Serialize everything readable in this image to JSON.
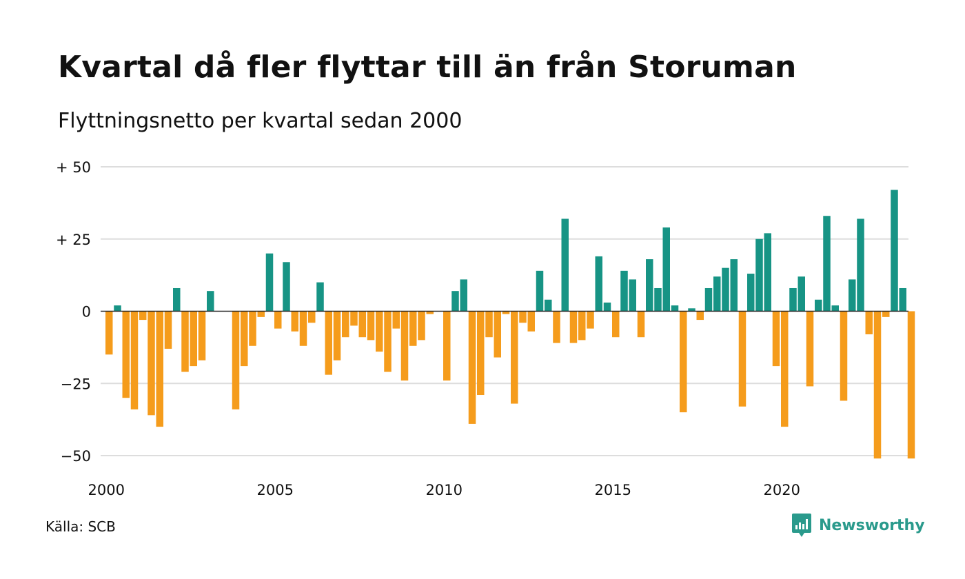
{
  "title": "Kvartal då fler flyttar till än från Storuman",
  "subtitle": "Flyttningsnetto per kvartal sedan 2000",
  "source": "Källa: SCB",
  "brand": {
    "name": "Newsworthy",
    "logo_icon": "newsworthy-chart-bubble-icon"
  },
  "colors": {
    "positive": "#179485",
    "negative": "#f59c1c",
    "grid": "#dddddd",
    "zero_line": "#222222",
    "brand": "#2a9a8c",
    "text": "#111111"
  },
  "chart_data": {
    "type": "bar",
    "title": "Kvartal då fler flyttar till än från Storuman",
    "subtitle": "Flyttningsnetto per kvartal sedan 2000",
    "ylim": [
      -50,
      50
    ],
    "y_ticks": [
      50,
      25,
      0,
      -25,
      -50
    ],
    "y_tick_labels": [
      "+ 50",
      "+ 25",
      "0",
      "−25",
      "−50"
    ],
    "x_ticks": [
      2000,
      2005,
      2010,
      2015,
      2020
    ],
    "x_tick_labels": [
      "2000",
      "2005",
      "2010",
      "2015",
      "2020"
    ],
    "grid": true,
    "legend": "none",
    "start_year": 2000,
    "quarters_per_year": 4,
    "categories": [
      "2000 Q1",
      "2000 Q2",
      "2000 Q3",
      "2000 Q4",
      "2001 Q1",
      "2001 Q2",
      "2001 Q3",
      "2001 Q4",
      "2002 Q1",
      "2002 Q2",
      "2002 Q3",
      "2002 Q4",
      "2003 Q1",
      "2003 Q2",
      "2003 Q3",
      "2003 Q4",
      "2004 Q1",
      "2004 Q2",
      "2004 Q3",
      "2004 Q4",
      "2005 Q1",
      "2005 Q2",
      "2005 Q3",
      "2005 Q4",
      "2006 Q1",
      "2006 Q2",
      "2006 Q3",
      "2006 Q4",
      "2007 Q1",
      "2007 Q2",
      "2007 Q3",
      "2007 Q4",
      "2008 Q1",
      "2008 Q2",
      "2008 Q3",
      "2008 Q4",
      "2009 Q1",
      "2009 Q2",
      "2009 Q3",
      "2009 Q4",
      "2010 Q1",
      "2010 Q2",
      "2010 Q3",
      "2010 Q4",
      "2011 Q1",
      "2011 Q2",
      "2011 Q3",
      "2011 Q4",
      "2012 Q1",
      "2012 Q2",
      "2012 Q3",
      "2012 Q4",
      "2013 Q1",
      "2013 Q2",
      "2013 Q3",
      "2013 Q4",
      "2014 Q1",
      "2014 Q2",
      "2014 Q3",
      "2014 Q4",
      "2015 Q1",
      "2015 Q2",
      "2015 Q3",
      "2015 Q4",
      "2016 Q1",
      "2016 Q2",
      "2016 Q3",
      "2016 Q4",
      "2017 Q1",
      "2017 Q2",
      "2017 Q3",
      "2017 Q4",
      "2018 Q1",
      "2018 Q2",
      "2018 Q3",
      "2018 Q4",
      "2019 Q1",
      "2019 Q2",
      "2019 Q3",
      "2019 Q4",
      "2020 Q1",
      "2020 Q2",
      "2020 Q3",
      "2020 Q4",
      "2021 Q1",
      "2021 Q2",
      "2021 Q3",
      "2021 Q4",
      "2022 Q1",
      "2022 Q2",
      "2022 Q3",
      "2022 Q4",
      "2023 Q1",
      "2023 Q2",
      "2023 Q3",
      "2023 Q4",
      "2024 Q1",
      "2024 Q2",
      "2024 Q3"
    ],
    "values": [
      -15,
      2,
      -30,
      -34,
      -3,
      -36,
      -40,
      -13,
      8,
      -21,
      -19,
      -17,
      7,
      0,
      0,
      -34,
      -19,
      -12,
      -2,
      20,
      -6,
      17,
      -7,
      -12,
      -4,
      10,
      -22,
      -17,
      -9,
      -5,
      -9,
      -10,
      -14,
      -21,
      -6,
      -24,
      -12,
      -10,
      -1,
      0,
      -24,
      7,
      11,
      -39,
      -29,
      -9,
      -16,
      -1,
      -32,
      -4,
      -7,
      14,
      4,
      -11,
      32,
      -11,
      -10,
      -6,
      19,
      3,
      -9,
      14,
      11,
      -9,
      18,
      8,
      29,
      2,
      -35,
      1,
      -3,
      8,
      12,
      15,
      18,
      -33,
      13,
      25,
      27,
      -19,
      -40,
      8,
      12,
      -26,
      4,
      33,
      2,
      -31,
      11,
      32,
      -8,
      -51,
      -2,
      42,
      8,
      -51,
      0,
      0,
      0
    ]
  }
}
